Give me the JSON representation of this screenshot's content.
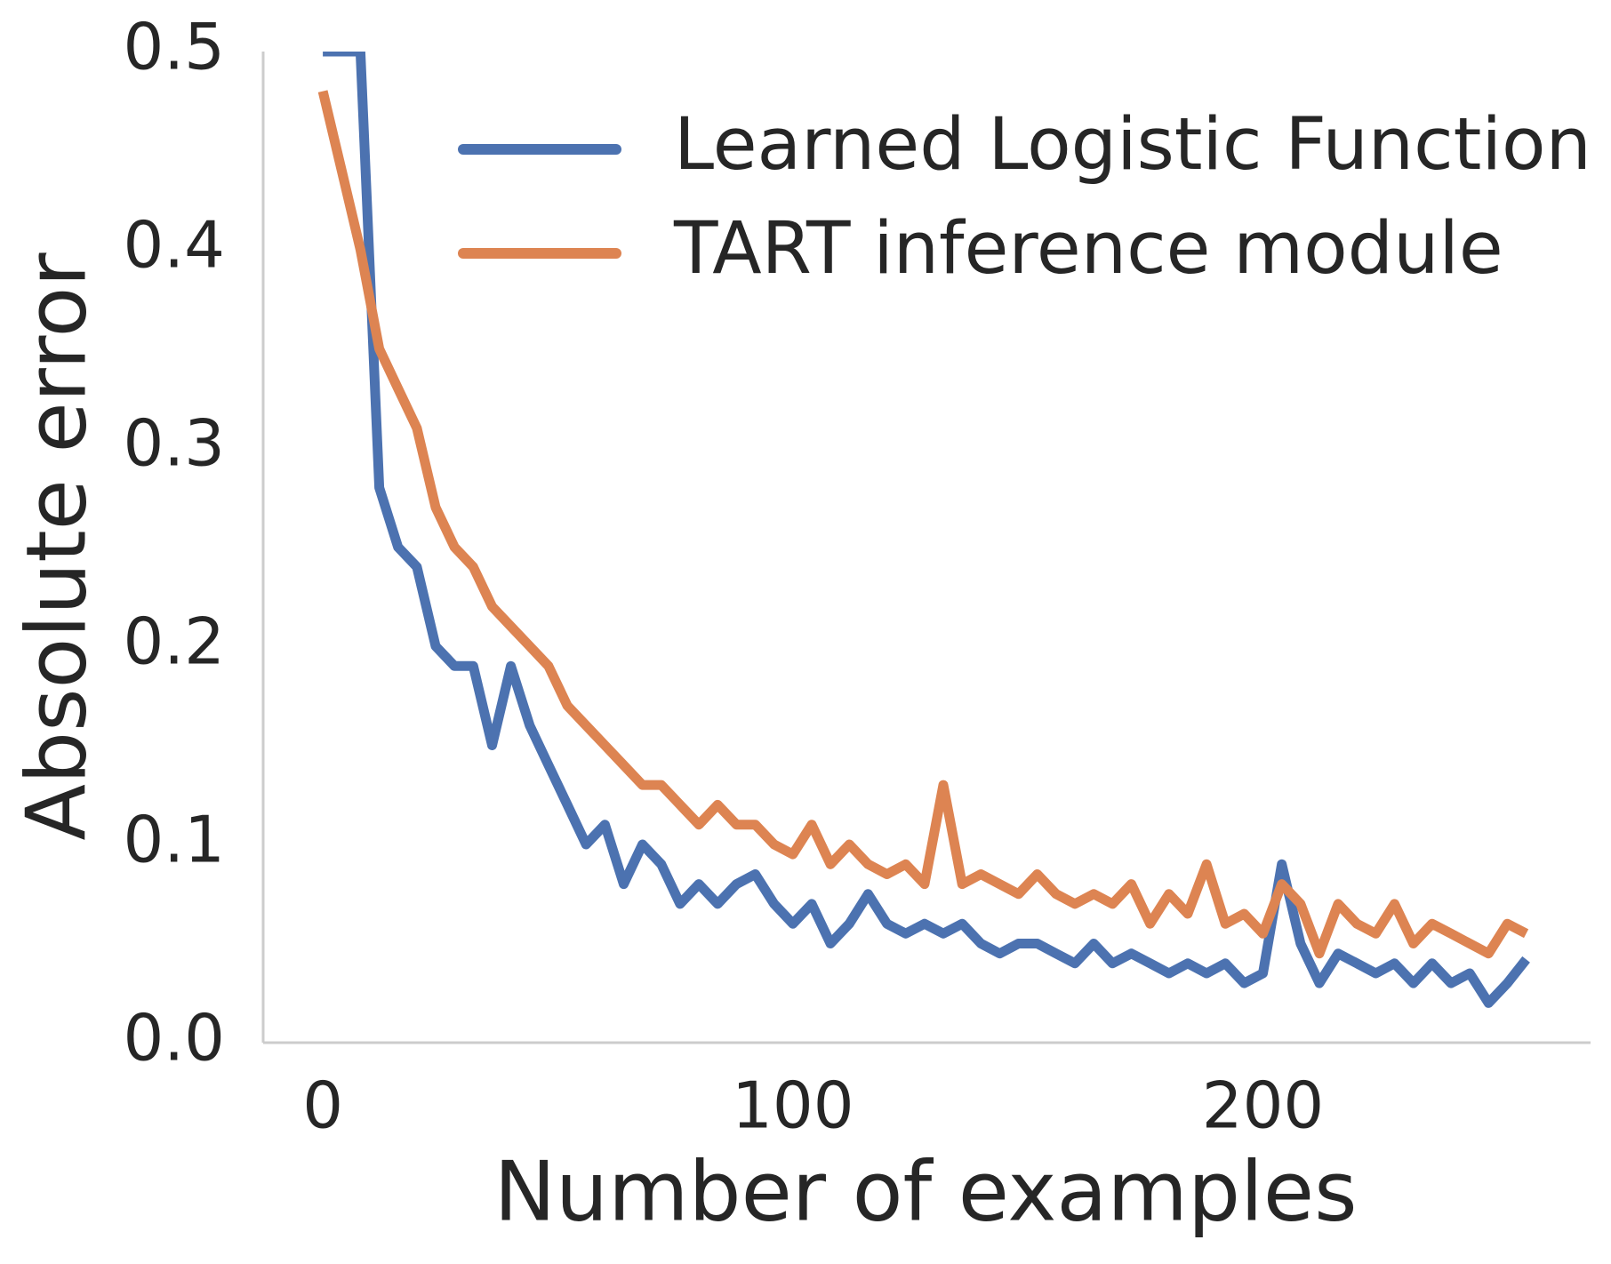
{
  "chart_data": {
    "type": "line",
    "xlabel": "Number of examples",
    "ylabel": "Absolute error",
    "x": [
      0,
      4,
      8,
      12,
      16,
      20,
      24,
      28,
      32,
      36,
      40,
      44,
      48,
      52,
      56,
      60,
      64,
      68,
      72,
      76,
      80,
      84,
      88,
      92,
      96,
      100,
      104,
      108,
      112,
      116,
      120,
      124,
      128,
      132,
      136,
      140,
      144,
      148,
      152,
      156,
      160,
      164,
      168,
      172,
      176,
      180,
      184,
      188,
      192,
      196,
      200,
      204,
      208,
      212,
      216,
      220,
      224,
      228,
      232,
      236,
      240,
      244,
      248,
      252,
      256
    ],
    "series": [
      {
        "name": "Learned Logistic Function",
        "color": "#4c72b0",
        "values": [
          0.5,
          0.5,
          0.5,
          0.28,
          0.25,
          0.24,
          0.2,
          0.19,
          0.19,
          0.15,
          0.19,
          0.16,
          0.14,
          0.12,
          0.1,
          0.11,
          0.08,
          0.1,
          0.09,
          0.07,
          0.08,
          0.07,
          0.08,
          0.085,
          0.07,
          0.06,
          0.07,
          0.05,
          0.06,
          0.075,
          0.06,
          0.055,
          0.06,
          0.055,
          0.06,
          0.05,
          0.045,
          0.05,
          0.05,
          0.045,
          0.04,
          0.05,
          0.04,
          0.045,
          0.04,
          0.035,
          0.04,
          0.035,
          0.04,
          0.03,
          0.035,
          0.09,
          0.05,
          0.03,
          0.045,
          0.04,
          0.035,
          0.04,
          0.03,
          0.04,
          0.03,
          0.035,
          0.02,
          0.03,
          0.042
        ]
      },
      {
        "name": "TART inference module",
        "color": "#dd8452",
        "values": [
          0.48,
          0.44,
          0.4,
          0.35,
          0.33,
          0.31,
          0.27,
          0.25,
          0.24,
          0.22,
          0.21,
          0.2,
          0.19,
          0.17,
          0.16,
          0.15,
          0.14,
          0.13,
          0.13,
          0.12,
          0.11,
          0.12,
          0.11,
          0.11,
          0.1,
          0.095,
          0.11,
          0.09,
          0.1,
          0.09,
          0.085,
          0.09,
          0.08,
          0.13,
          0.08,
          0.085,
          0.08,
          0.075,
          0.085,
          0.075,
          0.07,
          0.075,
          0.07,
          0.08,
          0.06,
          0.075,
          0.065,
          0.09,
          0.06,
          0.065,
          0.055,
          0.08,
          0.07,
          0.045,
          0.07,
          0.06,
          0.055,
          0.07,
          0.05,
          0.06,
          0.055,
          0.05,
          0.045,
          0.06,
          0.055
        ]
      }
    ],
    "xlim": [
      -12.7,
      269.7
    ],
    "xticks": [
      0,
      100,
      200
    ],
    "ylim": [
      0,
      0.5
    ],
    "yticks": [
      {
        "value": 0,
        "label": "0.0"
      },
      0.1,
      0.2,
      0.3,
      0.4,
      0.5
    ],
    "legend": "upper right",
    "grid": false
  }
}
